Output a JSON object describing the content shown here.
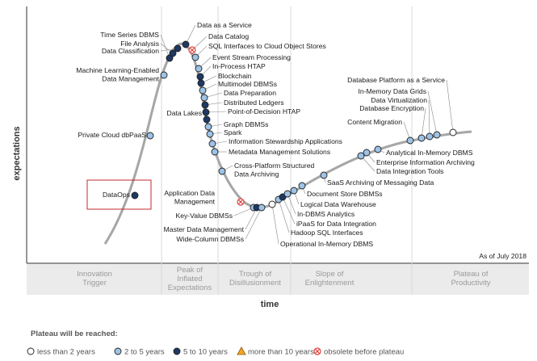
{
  "axes": {
    "y_label": "expectations",
    "x_label": "time"
  },
  "as_of": "As of July 2018",
  "phases": [
    [
      "Innovation",
      "Trigger"
    ],
    [
      "Peak of",
      "Inflated",
      "Expectations"
    ],
    [
      "Trough of",
      "Disillusionment"
    ],
    [
      "Slope of",
      "Enlightenment"
    ],
    [
      "Plateau of",
      "Productivity"
    ]
  ],
  "legend": {
    "title": "Plateau will be reached:",
    "items": [
      {
        "key": "lt2",
        "label": "less than 2 years",
        "color": "#ffffff"
      },
      {
        "key": "2to5",
        "label": "2 to 5 years",
        "color": "#9dc3e6"
      },
      {
        "key": "5to10",
        "label": "5 to 10 years",
        "color": "#1f3864"
      },
      {
        "key": "gt10",
        "label": "more than 10 years",
        "color": "#f5a623"
      },
      {
        "key": "obs",
        "label": "obsolete before plateau",
        "color": "#e04040"
      }
    ]
  },
  "highlight": "DataOps",
  "technologies": [
    {
      "name": "DataOps",
      "cat": "5to10"
    },
    {
      "name": "Private Cloud dbPaaS",
      "cat": "2to5"
    },
    {
      "name": "Machine Learning-Enabled Data Management",
      "cat": "2to5"
    },
    {
      "name": "Time Series DBMS",
      "cat": "5to10"
    },
    {
      "name": "File Analysis",
      "cat": "5to10"
    },
    {
      "name": "Data Classification",
      "cat": "5to10"
    },
    {
      "name": "Data as a Service",
      "cat": "5to10"
    },
    {
      "name": "Data Catalog",
      "cat": "obs"
    },
    {
      "name": "SQL Interfaces to Cloud Object Stores",
      "cat": "2to5"
    },
    {
      "name": "Event Stream Processing",
      "cat": "2to5"
    },
    {
      "name": "In-Process HTAP",
      "cat": "5to10"
    },
    {
      "name": "Blockchain",
      "cat": "5to10"
    },
    {
      "name": "Multimodel DBMSs",
      "cat": "2to5"
    },
    {
      "name": "Data Preparation",
      "cat": "2to5"
    },
    {
      "name": "Distributed Ledgers",
      "cat": "5to10"
    },
    {
      "name": "Point-of-Decision HTAP",
      "cat": "5to10"
    },
    {
      "name": "Data Lakes",
      "cat": "5to10"
    },
    {
      "name": "Graph DBMSs",
      "cat": "2to5"
    },
    {
      "name": "Spark",
      "cat": "2to5"
    },
    {
      "name": "Information Stewardship Applications",
      "cat": "2to5"
    },
    {
      "name": "Metadata Management Solutions",
      "cat": "2to5"
    },
    {
      "name": "Cross-Platform Structured Data Archiving",
      "cat": "2to5"
    },
    {
      "name": "Application Data Management",
      "cat": "obs"
    },
    {
      "name": "Key-Value DBMSs",
      "cat": "2to5"
    },
    {
      "name": "Master Data Management",
      "cat": "5to10"
    },
    {
      "name": "Wide-Column DBMSs",
      "cat": "2to5"
    },
    {
      "name": "Operational In-Memory DBMS",
      "cat": "lt2"
    },
    {
      "name": "Hadoop SQL Interfaces",
      "cat": "2to5"
    },
    {
      "name": "iPaaS for Data Integration",
      "cat": "5to10"
    },
    {
      "name": "In-DBMS Analytics",
      "cat": "2to5"
    },
    {
      "name": "Logical Data Warehouse",
      "cat": "2to5"
    },
    {
      "name": "Document Store DBMSs",
      "cat": "2to5"
    },
    {
      "name": "SaaS Archiving of Messaging Data",
      "cat": "2to5"
    },
    {
      "name": "Data Integration Tools",
      "cat": "2to5"
    },
    {
      "name": "Enterprise Information Archiving",
      "cat": "2to5"
    },
    {
      "name": "Analytical In-Memory DBMS",
      "cat": "2to5"
    },
    {
      "name": "Content Migration",
      "cat": "2to5"
    },
    {
      "name": "Database Encryption",
      "cat": "2to5"
    },
    {
      "name": "Data Virtualization",
      "cat": "2to5"
    },
    {
      "name": "In-Memory Data Grids",
      "cat": "2to5"
    },
    {
      "name": "Database Platform as a Service",
      "cat": "lt2"
    }
  ]
}
